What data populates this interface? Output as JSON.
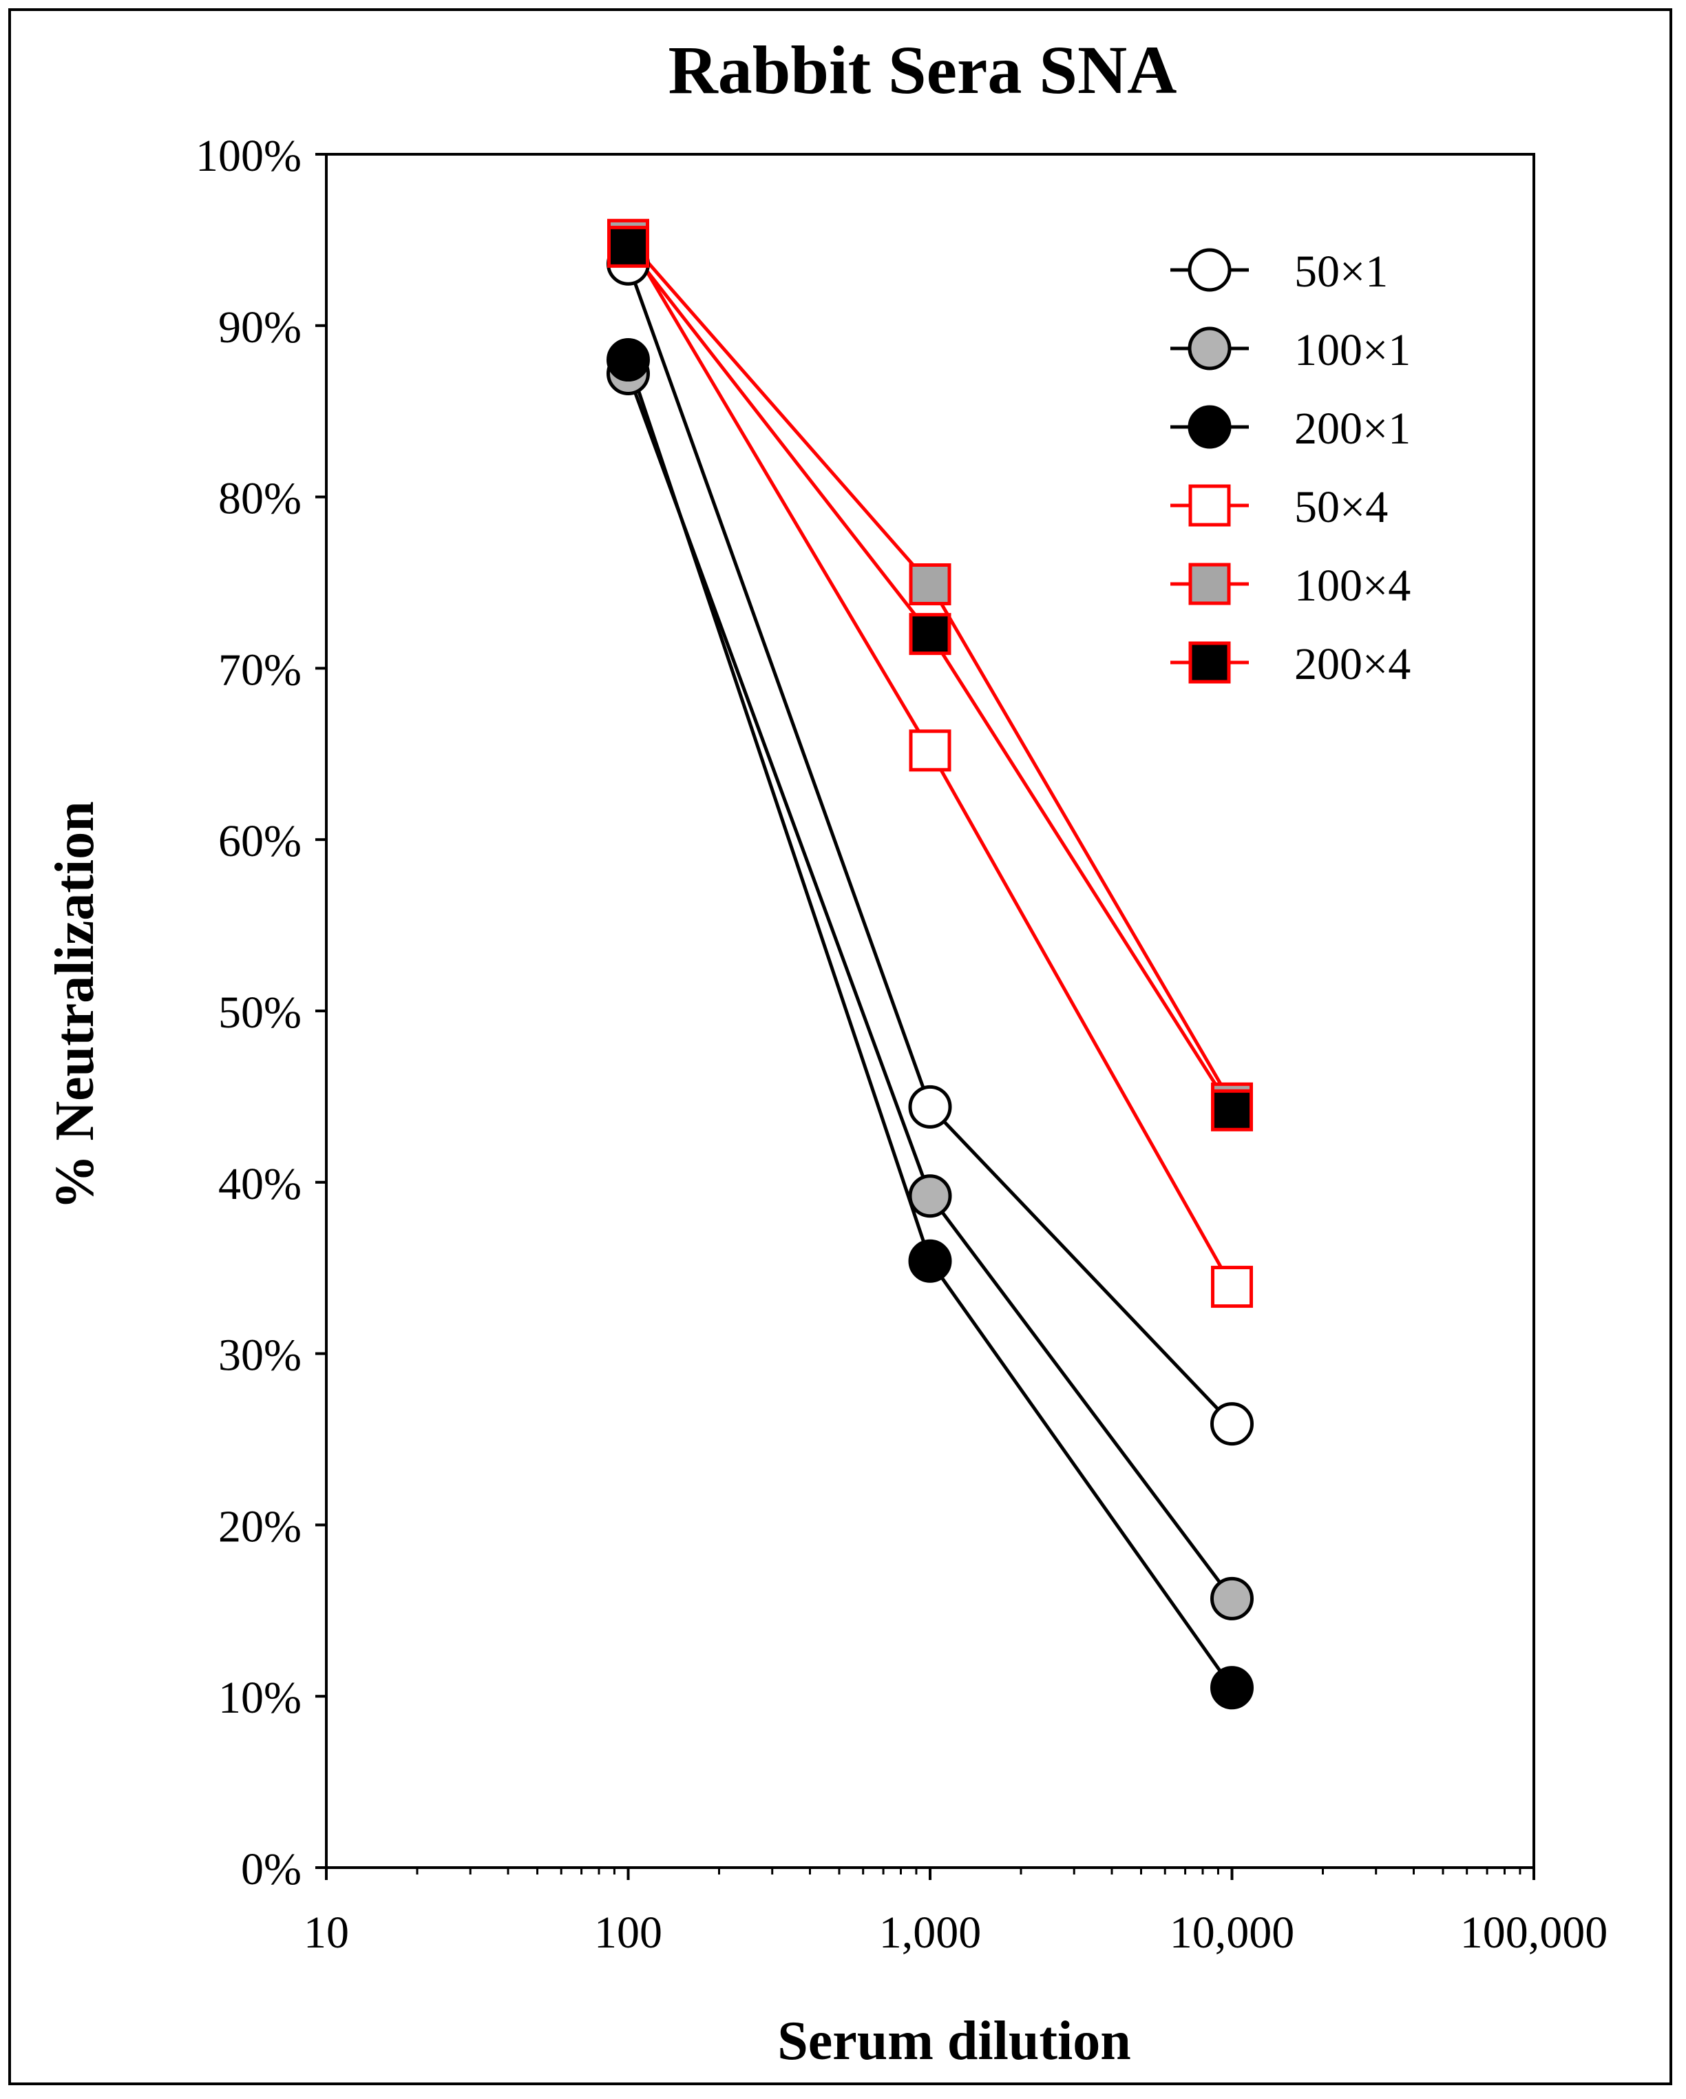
{
  "chart_data": {
    "type": "line",
    "title": "Rabbit Sera SNA",
    "xlabel": "Serum dilution",
    "ylabel": "% Neutralization",
    "x_scale": "log",
    "xlim": [
      10,
      100000
    ],
    "ylim": [
      0,
      100
    ],
    "x_ticks": [
      10,
      100,
      1000,
      10000,
      100000
    ],
    "x_tick_labels": [
      "10",
      "100",
      "1,000",
      "10,000",
      "100,000"
    ],
    "y_ticks": [
      0,
      10,
      20,
      30,
      40,
      50,
      60,
      70,
      80,
      90,
      100
    ],
    "y_tick_labels": [
      "0%",
      "10%",
      "20%",
      "30%",
      "40%",
      "50%",
      "60%",
      "70%",
      "80%",
      "90%",
      "100%"
    ],
    "legend_position": "top-right",
    "x": [
      100,
      1000,
      10000
    ],
    "series": [
      {
        "name": "50×1",
        "values": [
          93.6,
          44.4,
          25.9
        ],
        "color": "#000000",
        "marker": "circle",
        "fill": "#ffffff"
      },
      {
        "name": "100×1",
        "values": [
          87.2,
          39.2,
          15.7
        ],
        "color": "#000000",
        "marker": "circle",
        "fill": "#b3b3b3"
      },
      {
        "name": "200×1",
        "values": [
          88.0,
          35.4,
          10.5
        ],
        "color": "#000000",
        "marker": "circle",
        "fill": "#000000"
      },
      {
        "name": "50×4",
        "values": [
          95.0,
          65.2,
          33.9
        ],
        "color": "#ff0000",
        "marker": "square",
        "fill": "#ffffff"
      },
      {
        "name": "100×4",
        "values": [
          95.0,
          74.9,
          44.6
        ],
        "color": "#ff0000",
        "marker": "square",
        "fill": "#a6a6a6"
      },
      {
        "name": "200×4",
        "values": [
          94.6,
          72.0,
          44.2
        ],
        "color": "#ff0000",
        "marker": "square",
        "fill": "#000000"
      }
    ]
  }
}
